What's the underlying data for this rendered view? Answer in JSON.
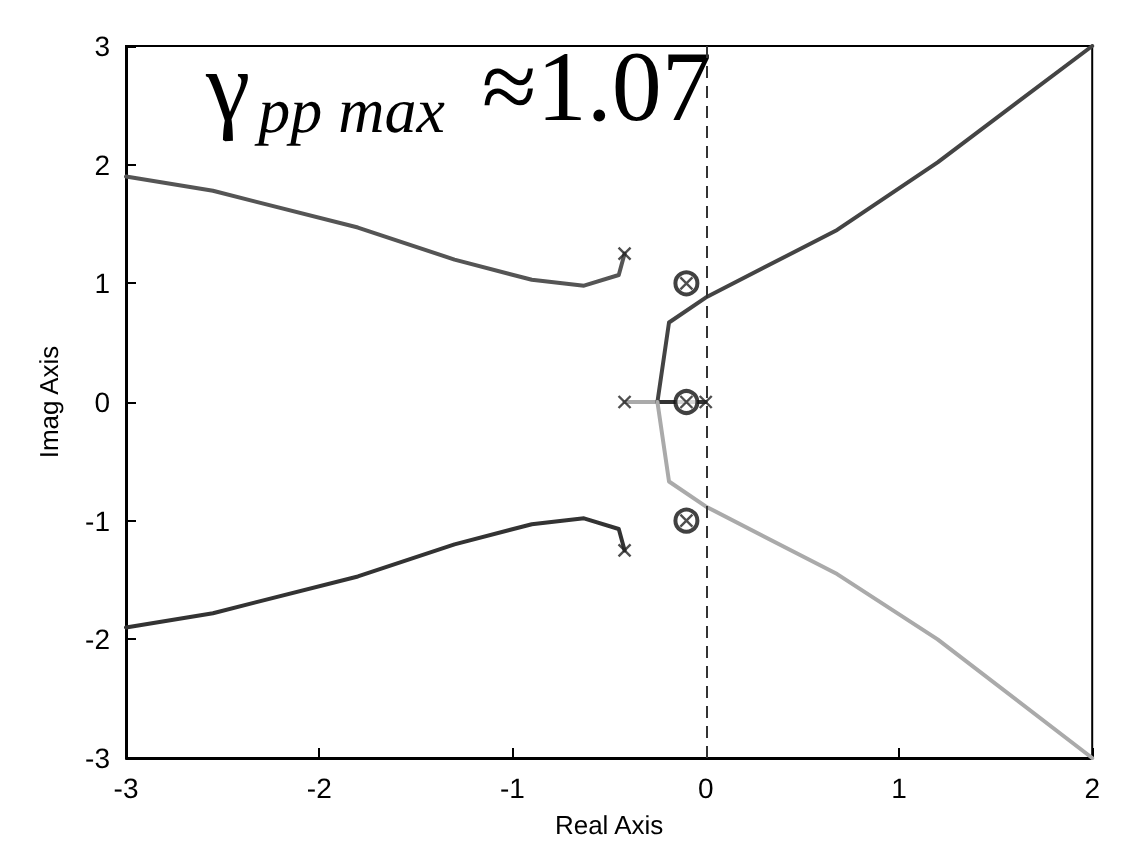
{
  "chart_data": {
    "type": "line",
    "xlabel": "Real Axis",
    "ylabel": "Imag Axis",
    "xlim": [
      -3,
      2
    ],
    "xticks": [
      -3,
      -2,
      -1,
      0,
      1,
      2
    ],
    "ylim": [
      -3,
      3
    ],
    "yticks": [
      -3,
      -2,
      -1,
      0,
      1,
      2,
      3
    ],
    "grid": false,
    "line_style": "solid",
    "annotations": [
      "γ$_{pp max}$ ≈1.07"
    ],
    "ref_lines": [
      {
        "axis": "x",
        "value": 0,
        "line_style": "dashed",
        "color": "#333333"
      }
    ],
    "series": [
      {
        "color": "#555555",
        "x": [
          -0.42,
          -0.45,
          -0.63,
          -0.9,
          -1.3,
          -1.8,
          -2.55,
          -3
        ],
        "values": [
          1.25,
          1.07,
          0.98,
          1.03,
          1.2,
          1.47,
          1.78,
          1.9
        ]
      },
      {
        "color": "#333333",
        "x": [
          -0.42,
          -0.45,
          -0.63,
          -0.9,
          -1.3,
          -1.8,
          -2.55,
          -3
        ],
        "values": [
          -1.25,
          -1.07,
          -0.98,
          -1.03,
          -1.2,
          -1.47,
          -1.78,
          -1.9
        ]
      },
      {
        "color": "#aaaaaa",
        "x": [
          -0.42,
          -0.25
        ],
        "values": [
          0,
          0
        ]
      },
      {
        "color": "#333333",
        "x": [
          0,
          -0.25
        ],
        "values": [
          0,
          0
        ]
      },
      {
        "color": "#444444",
        "x": [
          -0.25,
          -0.19,
          0,
          0.68,
          1.2,
          2
        ],
        "values": [
          0,
          0.67,
          0.88,
          1.45,
          2.02,
          3
        ]
      },
      {
        "color": "#aaaaaa",
        "x": [
          -0.25,
          -0.19,
          0,
          0.68,
          1.2,
          2
        ],
        "values": [
          0,
          -0.67,
          -0.88,
          -1.45,
          -2.0,
          -3
        ]
      },
      {
        "type": "scatter",
        "marker": "cross",
        "color": "#222222",
        "x": [
          -0.42,
          -0.42,
          -0.42,
          0,
          -0.1,
          -0.1,
          -0.1
        ],
        "values": [
          1.25,
          -1.25,
          0,
          0,
          1,
          0,
          -1
        ]
      },
      {
        "type": "scatter",
        "marker": "circle",
        "color": "#111111",
        "x": [
          -0.1,
          -0.1,
          -0.1
        ],
        "values": [
          1,
          0,
          -1
        ]
      }
    ]
  }
}
